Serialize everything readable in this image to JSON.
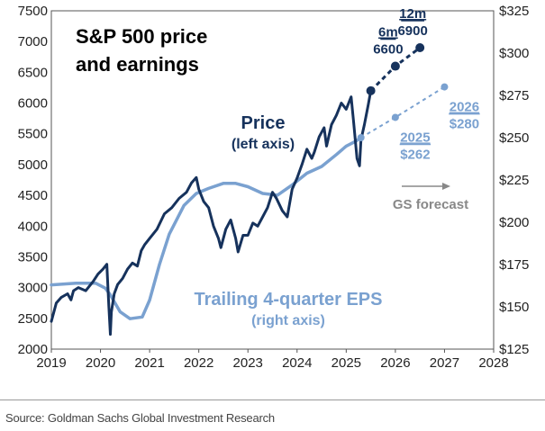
{
  "chart_data": {
    "type": "line",
    "title": "S&P 500 price and earnings",
    "title_lines": [
      "S&P 500 price",
      "and earnings"
    ],
    "x_ticks": [
      "2019",
      "2020",
      "2021",
      "2022",
      "2023",
      "2024",
      "2025",
      "2026",
      "2027",
      "2028"
    ],
    "xlim": [
      2019,
      2028
    ],
    "left_axis": {
      "ylim": [
        2000,
        7500
      ],
      "ticks": [
        "2000",
        "2500",
        "3000",
        "3500",
        "4000",
        "4500",
        "5000",
        "5500",
        "6000",
        "6500",
        "7000",
        "7500"
      ]
    },
    "right_axis": {
      "ylim": [
        125,
        325
      ],
      "ticks": [
        "$125",
        "$150",
        "$175",
        "$200",
        "$225",
        "$250",
        "$275",
        "$300",
        "$325"
      ]
    },
    "series": [
      {
        "name": "Price",
        "axis": "left",
        "color": "#16325c",
        "x": [
          2019.0,
          2019.1,
          2019.2,
          2019.33,
          2019.4,
          2019.45,
          2019.55,
          2019.7,
          2019.85,
          2019.95,
          2020.05,
          2020.13,
          2020.17,
          2020.2,
          2020.22,
          2020.28,
          2020.35,
          2020.45,
          2020.55,
          2020.65,
          2020.75,
          2020.83,
          2020.9,
          2021.0,
          2021.15,
          2021.3,
          2021.45,
          2021.6,
          2021.75,
          2021.85,
          2021.95,
          2022.0,
          2022.1,
          2022.2,
          2022.3,
          2022.4,
          2022.45,
          2022.55,
          2022.65,
          2022.75,
          2022.8,
          2022.9,
          2023.0,
          2023.1,
          2023.2,
          2023.3,
          2023.4,
          2023.5,
          2023.58,
          2023.7,
          2023.8,
          2023.9,
          2024.0,
          2024.1,
          2024.2,
          2024.3,
          2024.35,
          2024.45,
          2024.55,
          2024.6,
          2024.7,
          2024.8,
          2024.9,
          2025.0,
          2025.1,
          2025.15,
          2025.22,
          2025.27,
          2025.3,
          2025.37,
          2025.45,
          2025.5
        ],
        "values": [
          2450,
          2750,
          2840,
          2900,
          2800,
          2950,
          3000,
          2950,
          3100,
          3220,
          3300,
          3380,
          2700,
          2240,
          2600,
          2900,
          3050,
          3150,
          3300,
          3400,
          3350,
          3600,
          3700,
          3800,
          3950,
          4200,
          4300,
          4450,
          4550,
          4700,
          4790,
          4600,
          4400,
          4300,
          4000,
          3800,
          3650,
          3950,
          4100,
          3800,
          3580,
          3850,
          3850,
          4050,
          4000,
          4150,
          4300,
          4550,
          4450,
          4250,
          4150,
          4600,
          4780,
          5000,
          5250,
          5100,
          5200,
          5450,
          5600,
          5300,
          5650,
          5800,
          6000,
          5900,
          6100,
          5700,
          5100,
          4980,
          5400,
          5650,
          5980,
          6200
        ]
      },
      {
        "name": "Trailing 4-quarter EPS",
        "axis": "right",
        "color": "#7aa1d0",
        "x": [
          2019.0,
          2019.5,
          2019.9,
          2020.1,
          2020.2,
          2020.4,
          2020.6,
          2020.85,
          2021.0,
          2021.2,
          2021.4,
          2021.7,
          2021.95,
          2022.2,
          2022.5,
          2022.75,
          2023.0,
          2023.3,
          2023.6,
          2023.9,
          2024.2,
          2024.5,
          2024.8,
          2025.0,
          2025.2,
          2025.3
        ],
        "values": [
          163,
          164,
          164,
          161,
          157,
          147,
          143,
          144,
          154,
          175,
          193,
          210,
          217,
          220,
          223,
          223,
          221,
          217,
          216,
          222,
          229,
          233,
          240,
          245,
          248,
          250
        ]
      }
    ],
    "forecasts": [
      {
        "name": "Price forecast",
        "axis": "left",
        "color": "#16325c",
        "points": [
          {
            "x": 2025.5,
            "value": 6200
          },
          {
            "x": 2026.0,
            "value": 6600,
            "label_top": "6m",
            "label_bottom": "6600"
          },
          {
            "x": 2026.5,
            "value": 6900,
            "label_top": "12m",
            "label_bottom": "6900"
          }
        ]
      },
      {
        "name": "EPS forecast",
        "axis": "right",
        "color": "#7aa1d0",
        "points": [
          {
            "x": 2025.3,
            "value": 250
          },
          {
            "x": 2026.0,
            "value": 262,
            "label_top": "2025",
            "label_bottom": "$262"
          },
          {
            "x": 2027.0,
            "value": 280,
            "label_top": "2026",
            "label_bottom": "$280"
          }
        ]
      }
    ],
    "annotations": {
      "price_label": "Price",
      "price_axis_note": "(left axis)",
      "eps_label": "Trailing 4-quarter EPS",
      "eps_axis_note": "(right axis)",
      "forecast_label": "GS forecast"
    },
    "source": "Source: Goldman Sachs Global Investment Research"
  }
}
